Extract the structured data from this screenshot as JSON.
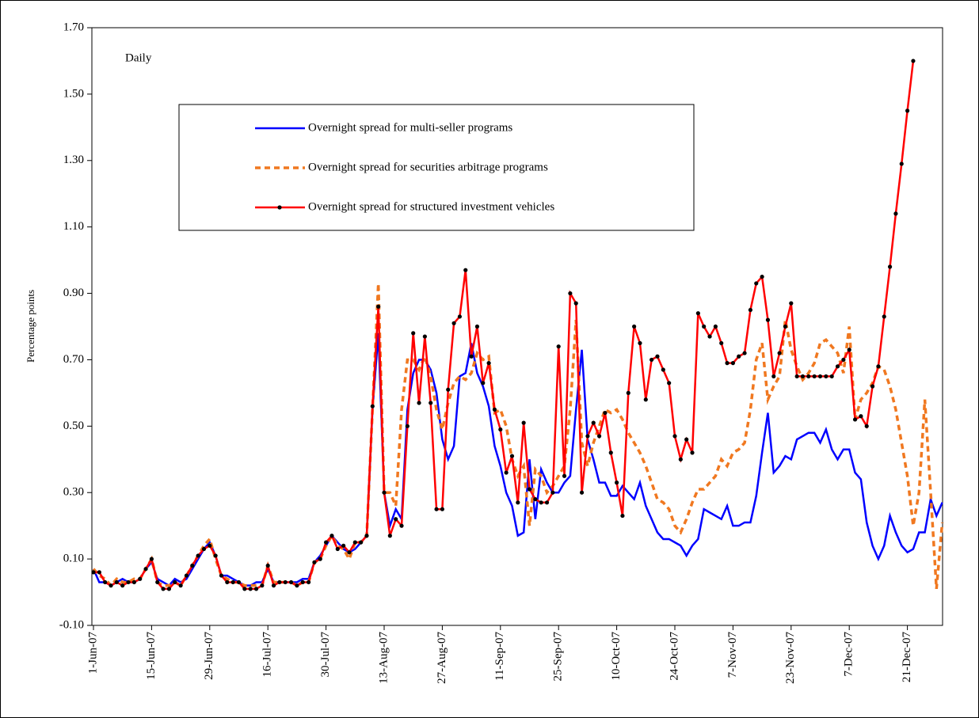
{
  "chart_data": {
    "type": "line",
    "annotation": "Daily",
    "y_label": "Percentage points",
    "categories": [
      "1-Jun-07",
      null,
      null,
      null,
      null,
      null,
      null,
      null,
      null,
      null,
      "15-Jun-07",
      null,
      null,
      null,
      null,
      null,
      null,
      null,
      null,
      null,
      "29-Jun-07",
      null,
      null,
      null,
      null,
      null,
      null,
      null,
      null,
      null,
      "16-Jul-07",
      null,
      null,
      null,
      null,
      null,
      null,
      null,
      null,
      null,
      "30-Jul-07",
      null,
      null,
      null,
      null,
      null,
      null,
      null,
      null,
      null,
      "13-Aug-07",
      null,
      null,
      null,
      null,
      null,
      null,
      null,
      null,
      null,
      "27-Aug-07",
      null,
      null,
      null,
      null,
      null,
      null,
      null,
      null,
      null,
      "11-Sep-07",
      null,
      null,
      null,
      null,
      null,
      null,
      null,
      null,
      null,
      "25-Sep-07",
      null,
      null,
      null,
      null,
      null,
      null,
      null,
      null,
      null,
      "10-Oct-07",
      null,
      null,
      null,
      null,
      null,
      null,
      null,
      null,
      null,
      "24-Oct-07",
      null,
      null,
      null,
      null,
      null,
      null,
      null,
      null,
      null,
      "7-Nov-07",
      null,
      null,
      null,
      null,
      null,
      null,
      null,
      null,
      null,
      "23-Nov-07",
      null,
      null,
      null,
      null,
      null,
      null,
      null,
      null,
      null,
      "7-Dec-07",
      null,
      null,
      null,
      null,
      null,
      null,
      null,
      null,
      null,
      "21-Dec-07",
      null,
      null,
      null,
      null,
      null,
      null
    ],
    "ylim": [
      -0.1,
      1.7
    ],
    "yticks": [
      {
        "value": -0.1,
        "label": "-0.10"
      },
      {
        "value": 0.1,
        "label": "0.10"
      },
      {
        "value": 0.3,
        "label": "0.30"
      },
      {
        "value": 0.5,
        "label": "0.50"
      },
      {
        "value": 0.7,
        "label": "0.70"
      },
      {
        "value": 0.9,
        "label": "0.90"
      },
      {
        "value": 1.1,
        "label": "1.10"
      },
      {
        "value": 1.3,
        "label": "1.30"
      },
      {
        "value": 1.5,
        "label": "1.50"
      },
      {
        "value": 1.7,
        "label": "1.70"
      }
    ],
    "series": [
      {
        "name": "Overnight spread for multi-seller programs",
        "color": "#0000ff",
        "style": "solid",
        "markers": false,
        "values": [
          0.07,
          0.03,
          0.03,
          0.02,
          0.03,
          0.04,
          0.03,
          0.03,
          0.04,
          0.07,
          0.09,
          0.04,
          0.03,
          0.02,
          0.04,
          0.03,
          0.04,
          0.07,
          0.1,
          0.13,
          0.15,
          0.11,
          0.05,
          0.05,
          0.04,
          0.03,
          0.02,
          0.02,
          0.03,
          0.03,
          0.07,
          0.03,
          0.03,
          0.03,
          0.03,
          0.03,
          0.04,
          0.04,
          0.09,
          0.11,
          0.14,
          0.17,
          0.15,
          0.13,
          0.12,
          0.13,
          0.15,
          0.17,
          0.55,
          0.78,
          0.3,
          0.2,
          0.25,
          0.22,
          0.55,
          0.66,
          0.7,
          0.7,
          0.67,
          0.6,
          0.46,
          0.4,
          0.44,
          0.65,
          0.66,
          0.75,
          0.66,
          0.62,
          0.56,
          0.44,
          0.38,
          0.3,
          0.26,
          0.17,
          0.18,
          0.4,
          0.22,
          0.37,
          0.33,
          0.3,
          0.3,
          0.33,
          0.35,
          0.55,
          0.73,
          0.46,
          0.4,
          0.33,
          0.33,
          0.29,
          0.29,
          0.32,
          0.3,
          0.28,
          0.33,
          0.26,
          0.22,
          0.18,
          0.16,
          0.16,
          0.15,
          0.14,
          0.11,
          0.14,
          0.16,
          0.25,
          0.24,
          0.23,
          0.22,
          0.26,
          0.2,
          0.2,
          0.21,
          0.21,
          0.29,
          0.42,
          0.54,
          0.36,
          0.38,
          0.41,
          0.4,
          0.46,
          0.47,
          0.48,
          0.48,
          0.45,
          0.49,
          0.43,
          0.4,
          0.43,
          0.43,
          0.36,
          0.34,
          0.21,
          0.14,
          0.1,
          0.14,
          0.23,
          0.18,
          0.14,
          0.12,
          0.13,
          0.18,
          0.18,
          0.28,
          0.23,
          0.27
        ]
      },
      {
        "name": "Overnight spread for securities arbitrage programs",
        "color": "#f07820",
        "style": "dashed",
        "markers": false,
        "values": [
          0.07,
          0.05,
          0.04,
          0.02,
          0.04,
          0.03,
          0.03,
          0.04,
          0.04,
          0.07,
          0.1,
          0.03,
          0.02,
          0.02,
          0.03,
          0.02,
          0.05,
          0.08,
          0.11,
          0.14,
          0.16,
          0.1,
          0.05,
          0.04,
          0.03,
          0.03,
          0.02,
          0.02,
          0.02,
          0.02,
          0.08,
          0.03,
          0.03,
          0.03,
          0.03,
          0.02,
          0.03,
          0.03,
          0.09,
          0.1,
          0.14,
          0.17,
          0.14,
          0.13,
          0.1,
          0.15,
          0.15,
          0.17,
          0.55,
          0.93,
          0.3,
          0.3,
          0.26,
          0.55,
          0.7,
          0.7,
          0.67,
          0.71,
          0.65,
          0.55,
          0.49,
          0.57,
          0.63,
          0.65,
          0.64,
          0.66,
          0.72,
          0.7,
          0.71,
          0.54,
          0.55,
          0.5,
          0.4,
          0.35,
          0.38,
          0.2,
          0.37,
          0.35,
          0.3,
          0.32,
          0.35,
          0.38,
          0.55,
          0.82,
          0.45,
          0.38,
          0.45,
          0.5,
          0.55,
          0.54,
          0.55,
          0.52,
          0.48,
          0.45,
          0.42,
          0.38,
          0.33,
          0.28,
          0.27,
          0.25,
          0.2,
          0.18,
          0.22,
          0.27,
          0.31,
          0.31,
          0.33,
          0.35,
          0.4,
          0.38,
          0.42,
          0.43,
          0.45,
          0.55,
          0.7,
          0.75,
          0.58,
          0.62,
          0.65,
          0.82,
          0.73,
          0.68,
          0.64,
          0.66,
          0.69,
          0.75,
          0.76,
          0.74,
          0.72,
          0.66,
          0.8,
          0.52,
          0.58,
          0.6,
          0.63,
          0.68,
          0.67,
          0.62,
          0.55,
          0.45,
          0.35,
          0.2,
          0.3,
          0.58,
          0.3,
          0.01,
          0.21
        ]
      },
      {
        "name": "Overnight spread for structured investment vehicles",
        "color": "#ff0000",
        "style": "solid",
        "markers": true,
        "values": [
          0.06,
          0.06,
          0.03,
          0.02,
          0.03,
          0.02,
          0.03,
          0.03,
          0.04,
          0.07,
          0.1,
          0.03,
          0.01,
          0.01,
          0.03,
          0.02,
          0.05,
          0.08,
          0.11,
          0.13,
          0.14,
          0.11,
          0.05,
          0.03,
          0.03,
          0.03,
          0.01,
          0.01,
          0.01,
          0.02,
          0.08,
          0.02,
          0.03,
          0.03,
          0.03,
          0.02,
          0.03,
          0.03,
          0.09,
          0.1,
          0.15,
          0.17,
          0.13,
          0.14,
          0.12,
          0.15,
          0.15,
          0.17,
          0.56,
          0.86,
          0.3,
          0.17,
          0.22,
          0.2,
          0.5,
          0.78,
          0.57,
          0.77,
          0.57,
          0.25,
          0.25,
          0.61,
          0.81,
          0.83,
          0.97,
          0.71,
          0.8,
          0.63,
          0.69,
          0.55,
          0.49,
          0.36,
          0.41,
          0.27,
          0.51,
          0.31,
          0.28,
          0.27,
          0.27,
          0.3,
          0.74,
          0.35,
          0.9,
          0.87,
          0.3,
          0.47,
          0.51,
          0.47,
          0.54,
          0.42,
          0.33,
          0.23,
          0.6,
          0.8,
          0.75,
          0.58,
          0.7,
          0.71,
          0.67,
          0.63,
          0.47,
          0.4,
          0.46,
          0.42,
          0.84,
          0.8,
          0.77,
          0.8,
          0.75,
          0.69,
          0.69,
          0.71,
          0.72,
          0.85,
          0.93,
          0.95,
          0.82,
          0.65,
          0.72,
          0.8,
          0.87,
          0.65,
          0.65,
          0.65,
          0.65,
          0.65,
          0.65,
          0.65,
          0.68,
          0.7,
          0.73,
          0.52,
          0.53,
          0.5,
          0.62,
          0.68,
          0.83,
          0.98,
          1.14,
          1.29,
          1.45,
          1.6,
          null,
          null,
          null,
          null,
          null
        ]
      }
    ]
  }
}
